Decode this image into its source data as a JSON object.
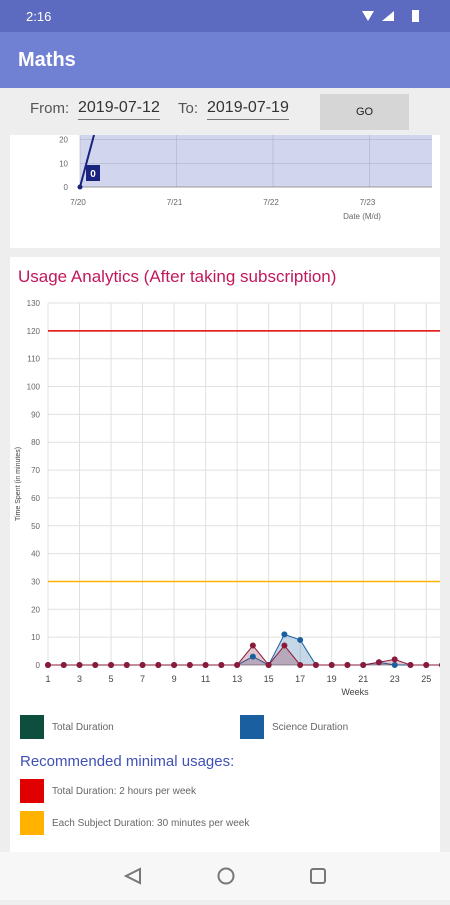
{
  "status_bar": {
    "time": "2:16"
  },
  "app_bar": {
    "title": "Maths"
  },
  "date_filter": {
    "from_label": "From:",
    "from_value": "2019-07-12",
    "to_label": "To:",
    "to_value": "2019-07-19",
    "button": "GO"
  },
  "daily_chart": {
    "type": "line",
    "categories": [
      "7/20",
      "7/21",
      "7/22",
      "7/23"
    ],
    "x_label": "Date (M/d)",
    "values": [
      0,
      null,
      null,
      null
    ],
    "color": "#1a237e",
    "ylim": [
      0,
      22
    ],
    "yticks": [
      0,
      10,
      20
    ]
  },
  "usage_chart": {
    "type": "line",
    "title": "Usage Analytics (After taking subscription)",
    "y_label": "Time Spent (in minutes)",
    "x_label": "Weeks",
    "x": [
      1,
      2,
      3,
      4,
      5,
      6,
      7,
      8,
      9,
      10,
      11,
      12,
      13,
      14,
      15,
      16,
      17,
      18,
      19,
      20,
      21,
      22,
      23,
      24,
      25,
      26
    ],
    "xlim": [
      1,
      26
    ],
    "xticks": [
      1,
      3,
      5,
      7,
      9,
      11,
      13,
      15,
      17,
      19,
      21,
      23,
      25
    ],
    "ylim": [
      0,
      130
    ],
    "yticks": [
      0,
      10,
      20,
      30,
      40,
      50,
      60,
      70,
      80,
      90,
      100,
      110,
      120,
      130
    ],
    "grid": true,
    "series": [
      {
        "name": "Total Duration",
        "color": "#0d4f3c",
        "marker_color": "#8b1a3a",
        "values": [
          0,
          0,
          0,
          0,
          0,
          0,
          0,
          0,
          0,
          0,
          0,
          0,
          0,
          7,
          0,
          7,
          0,
          0,
          0,
          0,
          0,
          1,
          2,
          0,
          0,
          0
        ]
      },
      {
        "name": "Science Duration",
        "color": "#1a5fa0",
        "marker_color": "#1a5fa0",
        "values": [
          0,
          0,
          0,
          0,
          0,
          0,
          0,
          0,
          0,
          0,
          0,
          0,
          0,
          3,
          0,
          11,
          9,
          0,
          0,
          0,
          0,
          1,
          0,
          0,
          0,
          0
        ]
      }
    ]
  },
  "recommendations": {
    "title": "Recommended minimal usages:",
    "items": [
      {
        "label": "Total Duration: 2 hours per week",
        "color": "#e00000",
        "limit": 120
      },
      {
        "label": "Each Subject Duration: 30 minutes per week",
        "color": "#ffb300",
        "limit": 30
      }
    ]
  }
}
